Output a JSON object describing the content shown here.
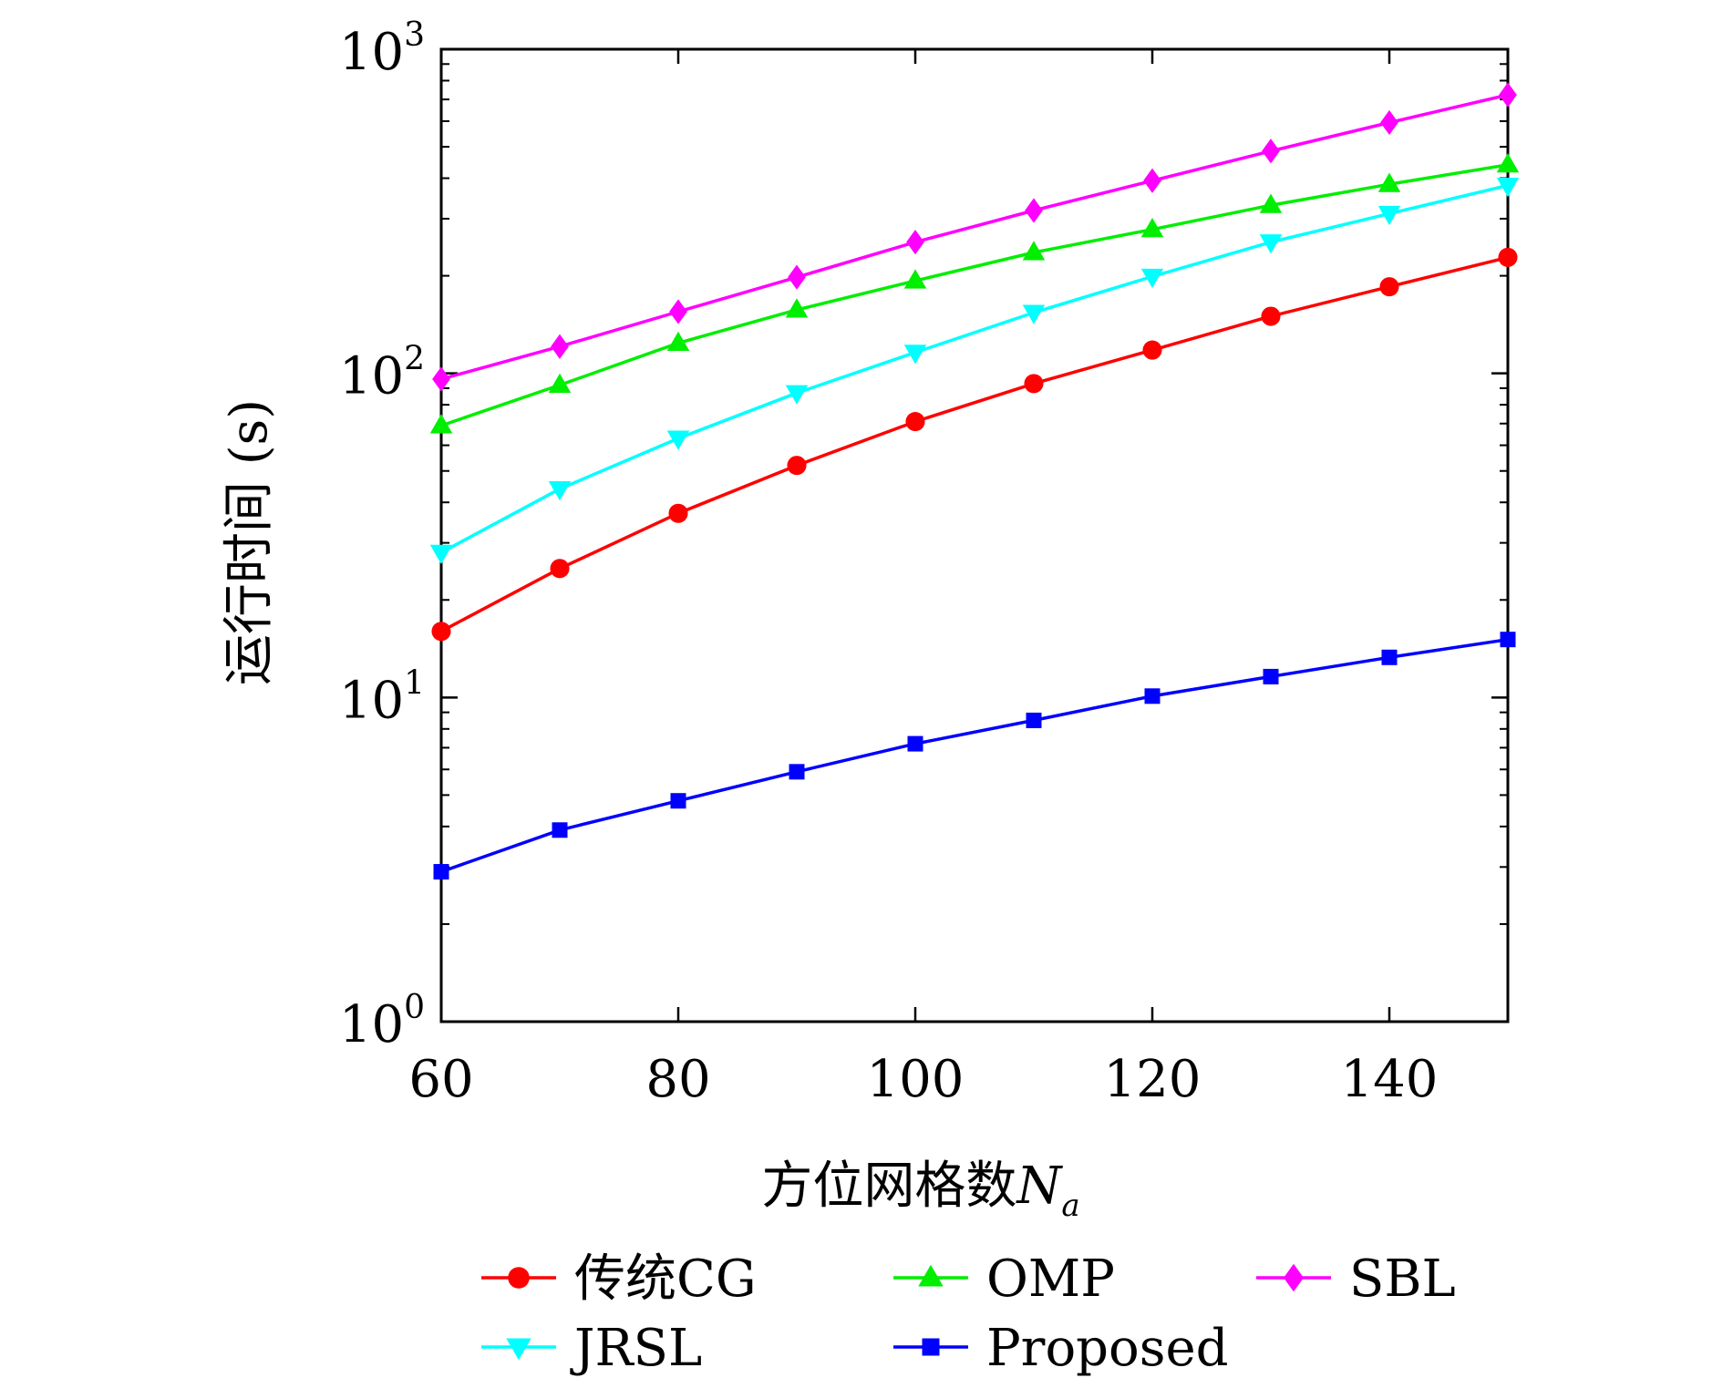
{
  "chart_data": {
    "type": "line",
    "xlabel": "方位网格数",
    "xlabel_symbol": "N",
    "xlabel_subscript": "a",
    "ylabel": "运行时间 (s)",
    "xlim": [
      60,
      150
    ],
    "ylim": [
      1,
      1000
    ],
    "y_scale": "log",
    "x_ticks": [
      60,
      80,
      100,
      120,
      140
    ],
    "y_ticks": [
      {
        "value": 1,
        "base": "10",
        "exp": "0"
      },
      {
        "value": 10,
        "base": "10",
        "exp": "1"
      },
      {
        "value": 100,
        "base": "10",
        "exp": "2"
      },
      {
        "value": 1000,
        "base": "10",
        "exp": "3"
      }
    ],
    "grid": false,
    "legend_position": "bottom",
    "x": [
      60,
      70,
      80,
      90,
      100,
      110,
      120,
      130,
      140,
      150
    ],
    "series": [
      {
        "name": "传统CG",
        "color": "#ff0000",
        "marker": "circle",
        "values": [
          16,
          25,
          37,
          52,
          71,
          93,
          118,
          150,
          185,
          228
        ]
      },
      {
        "name": "OMP",
        "color": "#00ee00",
        "marker": "triangle-up",
        "values": [
          69,
          92,
          124,
          157,
          193,
          236,
          278,
          330,
          383,
          440
        ]
      },
      {
        "name": "SBL",
        "color": "#ff00ff",
        "marker": "diamond",
        "values": [
          96,
          121,
          155,
          198,
          254,
          318,
          393,
          485,
          594,
          723
        ]
      },
      {
        "name": "JRSL",
        "color": "#00ffff",
        "marker": "triangle-down",
        "values": [
          28,
          44,
          63,
          87,
          116,
          154,
          199,
          254,
          311,
          380
        ]
      },
      {
        "name": "Proposed",
        "color": "#0000ff",
        "marker": "square",
        "values": [
          2.9,
          3.9,
          4.8,
          5.9,
          7.2,
          8.5,
          10.1,
          11.6,
          13.3,
          15.1
        ]
      }
    ]
  }
}
